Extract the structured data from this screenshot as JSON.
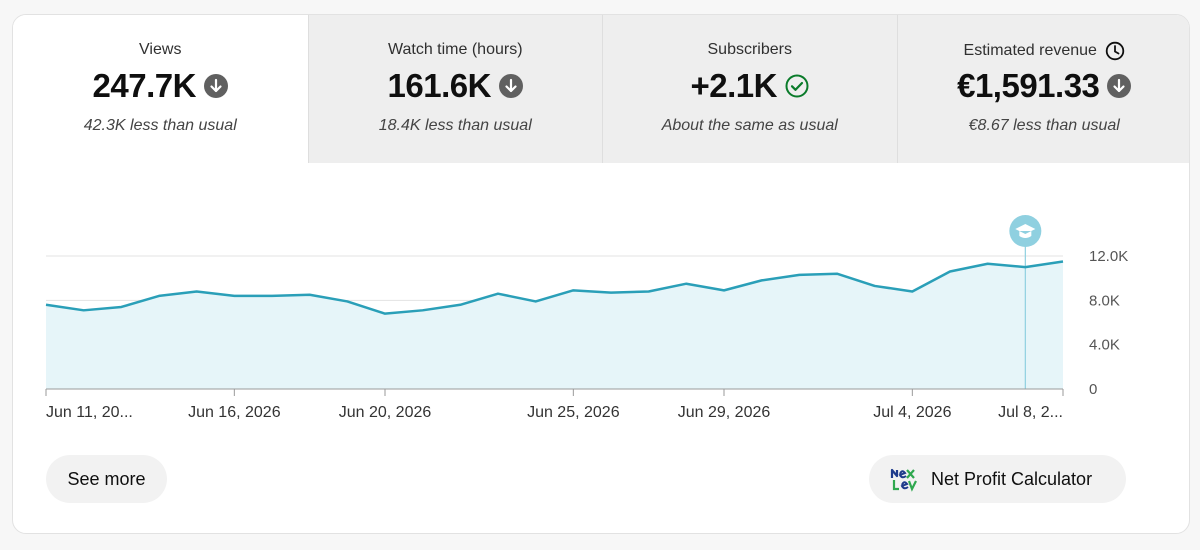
{
  "metrics": [
    {
      "label": "Views",
      "value": "247.7K",
      "sub": "42.3K less than usual",
      "indicator": "arrow-down-icon",
      "active": true
    },
    {
      "label": "Watch time (hours)",
      "value": "161.6K",
      "sub": "18.4K less than usual",
      "indicator": "arrow-down-icon",
      "active": false
    },
    {
      "label": "Subscribers",
      "value": "+2.1K",
      "sub": "About the same as usual",
      "indicator": "check-circle-icon",
      "active": false
    },
    {
      "label": "Estimated revenue",
      "value": "€1,591.33",
      "sub": "€8.67 less than usual",
      "indicator": "arrow-down-icon",
      "has_clock": true,
      "active": false
    }
  ],
  "chart_data": {
    "type": "area",
    "x": [
      "Jun 11",
      "Jun 12",
      "Jun 13",
      "Jun 14",
      "Jun 15",
      "Jun 16",
      "Jun 17",
      "Jun 18",
      "Jun 19",
      "Jun 20",
      "Jun 21",
      "Jun 22",
      "Jun 23",
      "Jun 24",
      "Jun 25",
      "Jun 26",
      "Jun 27",
      "Jun 28",
      "Jun 29",
      "Jun 30",
      "Jul 1",
      "Jul 2",
      "Jul 3",
      "Jul 4",
      "Jul 5",
      "Jul 6",
      "Jul 7",
      "Jul 8"
    ],
    "values": [
      7600,
      7100,
      7400,
      8400,
      8800,
      8400,
      8400,
      8500,
      7900,
      6800,
      7100,
      7600,
      8600,
      7900,
      8900,
      8700,
      8800,
      9500,
      8900,
      9800,
      10300,
      10400,
      9300,
      8800,
      10600,
      11300,
      11000,
      11500
    ],
    "ylim": [
      0,
      12000
    ],
    "yticks": [
      "0",
      "4.0K",
      "8.0K",
      "12.0K"
    ],
    "ytick_values": [
      0,
      4000,
      8000,
      12000
    ],
    "xtick_labels": [
      {
        "label": "Jun 11, 20...",
        "index": 0
      },
      {
        "label": "Jun 16, 2026",
        "index": 5
      },
      {
        "label": "Jun 20, 2026",
        "index": 9
      },
      {
        "label": "Jun 25, 2026",
        "index": 14
      },
      {
        "label": "Jun 29, 2026",
        "index": 18
      },
      {
        "label": "Jul 4, 2026",
        "index": 23
      },
      {
        "label": "Jul 8, 2...",
        "index": 27
      }
    ],
    "marker_index": 26,
    "marker_icon": "graduation-cap-icon",
    "grid": true,
    "line_color": "#2a9fb8",
    "fill_color": "#e6f5f9"
  },
  "buttons": {
    "see_more": "See more",
    "net_profit": "Net Profit Calculator"
  },
  "colors": {
    "indicator_gray": "#606060",
    "check_green": "#0a7b2a",
    "marker": "#8fd0e0"
  }
}
